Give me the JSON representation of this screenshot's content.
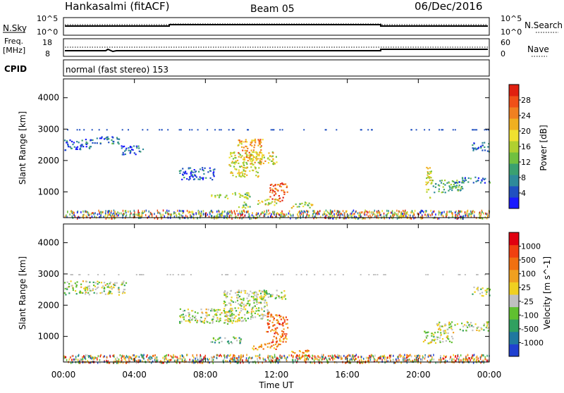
{
  "header": {
    "station": "Hankasalmi (fitACF)",
    "beam": "Beam 05",
    "date": "06/Dec/2016"
  },
  "top_panels": {
    "sky_label": "N.Sky",
    "search_label": "N.Search",
    "freq_label_1": "Freq.",
    "freq_label_2": "[MHz]",
    "nave_label": "Nave",
    "cpid_label": "CPID",
    "sky_ticks": [
      "10^5",
      "10^0"
    ],
    "search_ticks": [
      "10^5",
      "10^0"
    ],
    "freq_ticks": [
      "18",
      "8"
    ],
    "nave_ticks": [
      "60",
      "0"
    ],
    "cpid_text": "normal (fast stereo) 153"
  },
  "chart_data": [
    {
      "type": "heatmap",
      "panel": "power",
      "ylabel": "Slant Range [km]",
      "ylim": [
        180,
        4600
      ],
      "yticks": [
        1000,
        2000,
        3000,
        4000
      ],
      "xlim": [
        0,
        24
      ],
      "colorbar_label": "Power [dB]",
      "colorbar_ticks": [
        "4",
        "8",
        "12",
        "16",
        "20",
        "24",
        "28"
      ],
      "colorbar_colors": [
        "#1a1aff",
        "#2050c0",
        "#2e8a9a",
        "#3aa070",
        "#70c040",
        "#b0d030",
        "#f0e030",
        "#f0b020",
        "#f08020",
        "#f05018",
        "#e02010"
      ],
      "blobs": [
        {
          "t0": 0.0,
          "t1": 1.6,
          "r0": 2350,
          "r1": 2700,
          "level": 0.15
        },
        {
          "t0": 1.6,
          "t1": 3.2,
          "r0": 2550,
          "r1": 2800,
          "level": 0.2
        },
        {
          "t0": 3.2,
          "t1": 4.5,
          "r0": 2200,
          "r1": 2500,
          "level": 0.15
        },
        {
          "t0": 6.5,
          "t1": 8.5,
          "r0": 1400,
          "r1": 1800,
          "level": 0.15
        },
        {
          "t0": 8.3,
          "t1": 10.5,
          "r0": 800,
          "r1": 1000,
          "level": 0.45
        },
        {
          "t0": 9.3,
          "t1": 11.0,
          "r0": 1500,
          "r1": 2300,
          "level": 0.55
        },
        {
          "t0": 9.8,
          "t1": 11.2,
          "r0": 2000,
          "r1": 2700,
          "level": 0.7
        },
        {
          "t0": 10.5,
          "t1": 12.0,
          "r0": 1900,
          "r1": 2300,
          "level": 0.6
        },
        {
          "t0": 11.6,
          "t1": 12.6,
          "r0": 700,
          "r1": 1300,
          "level": 0.85
        },
        {
          "t0": 10.8,
          "t1": 12.0,
          "r0": 600,
          "r1": 800,
          "level": 0.55
        },
        {
          "t0": 12.8,
          "t1": 14.0,
          "r0": 500,
          "r1": 700,
          "level": 0.5
        },
        {
          "t0": 9.8,
          "t1": 10.6,
          "r0": 500,
          "r1": 700,
          "level": 0.45
        },
        {
          "t0": 20.4,
          "t1": 20.8,
          "r0": 800,
          "r1": 1800,
          "level": 0.55
        },
        {
          "t0": 20.8,
          "t1": 22.5,
          "r0": 1000,
          "r1": 1400,
          "level": 0.35
        },
        {
          "t0": 22.0,
          "t1": 24.0,
          "r0": 1300,
          "r1": 1500,
          "level": 0.2
        },
        {
          "t0": 23.0,
          "t1": 24.0,
          "r0": 2300,
          "r1": 2600,
          "level": 0.2
        }
      ]
    },
    {
      "type": "heatmap",
      "panel": "velocity",
      "ylabel": "Slant Range [km]",
      "ylim": [
        180,
        4600
      ],
      "yticks": [
        1000,
        2000,
        3000,
        4000
      ],
      "xlim": [
        0,
        24
      ],
      "xticks": [
        "00:00",
        "04:00",
        "08:00",
        "12:00",
        "16:00",
        "20:00",
        "00:00"
      ],
      "xlabel": "Time UT",
      "colorbar_label": "Velocity [m s^-1]",
      "colorbar_ticks": [
        "1000",
        "500",
        "100",
        "25",
        "-25",
        "-100",
        "-500",
        "-1000"
      ],
      "colorbar_colors": [
        "#2040d0",
        "#2078a0",
        "#30a060",
        "#60c030",
        "#c0c0c0",
        "#f0d020",
        "#f0a020",
        "#f07010",
        "#f04010",
        "#e00010"
      ],
      "blobs": [
        {
          "t0": 0.0,
          "t1": 3.5,
          "r0": 2350,
          "r1": 2800,
          "level": 0.45
        },
        {
          "t0": 6.5,
          "t1": 9.5,
          "r0": 1400,
          "r1": 1900,
          "level": 0.45
        },
        {
          "t0": 9.0,
          "t1": 11.5,
          "r0": 1500,
          "r1": 2500,
          "level": 0.45
        },
        {
          "t0": 10.5,
          "t1": 12.5,
          "r0": 2200,
          "r1": 2500,
          "level": 0.45
        },
        {
          "t0": 11.4,
          "t1": 12.6,
          "r0": 800,
          "r1": 1800,
          "level": 0.75
        },
        {
          "t0": 10.6,
          "t1": 12.2,
          "r0": 600,
          "r1": 800,
          "level": 0.7
        },
        {
          "t0": 12.8,
          "t1": 13.8,
          "r0": 400,
          "r1": 600,
          "level": 0.7
        },
        {
          "t0": 8.2,
          "t1": 10.0,
          "r0": 800,
          "r1": 1000,
          "level": 0.35
        },
        {
          "t0": 20.2,
          "t1": 22.0,
          "r0": 800,
          "r1": 1200,
          "level": 0.45
        },
        {
          "t0": 21.0,
          "t1": 24.0,
          "r0": 1200,
          "r1": 1500,
          "level": 0.45
        },
        {
          "t0": 23.0,
          "t1": 24.0,
          "r0": 2300,
          "r1": 2600,
          "level": 0.45
        }
      ]
    }
  ]
}
